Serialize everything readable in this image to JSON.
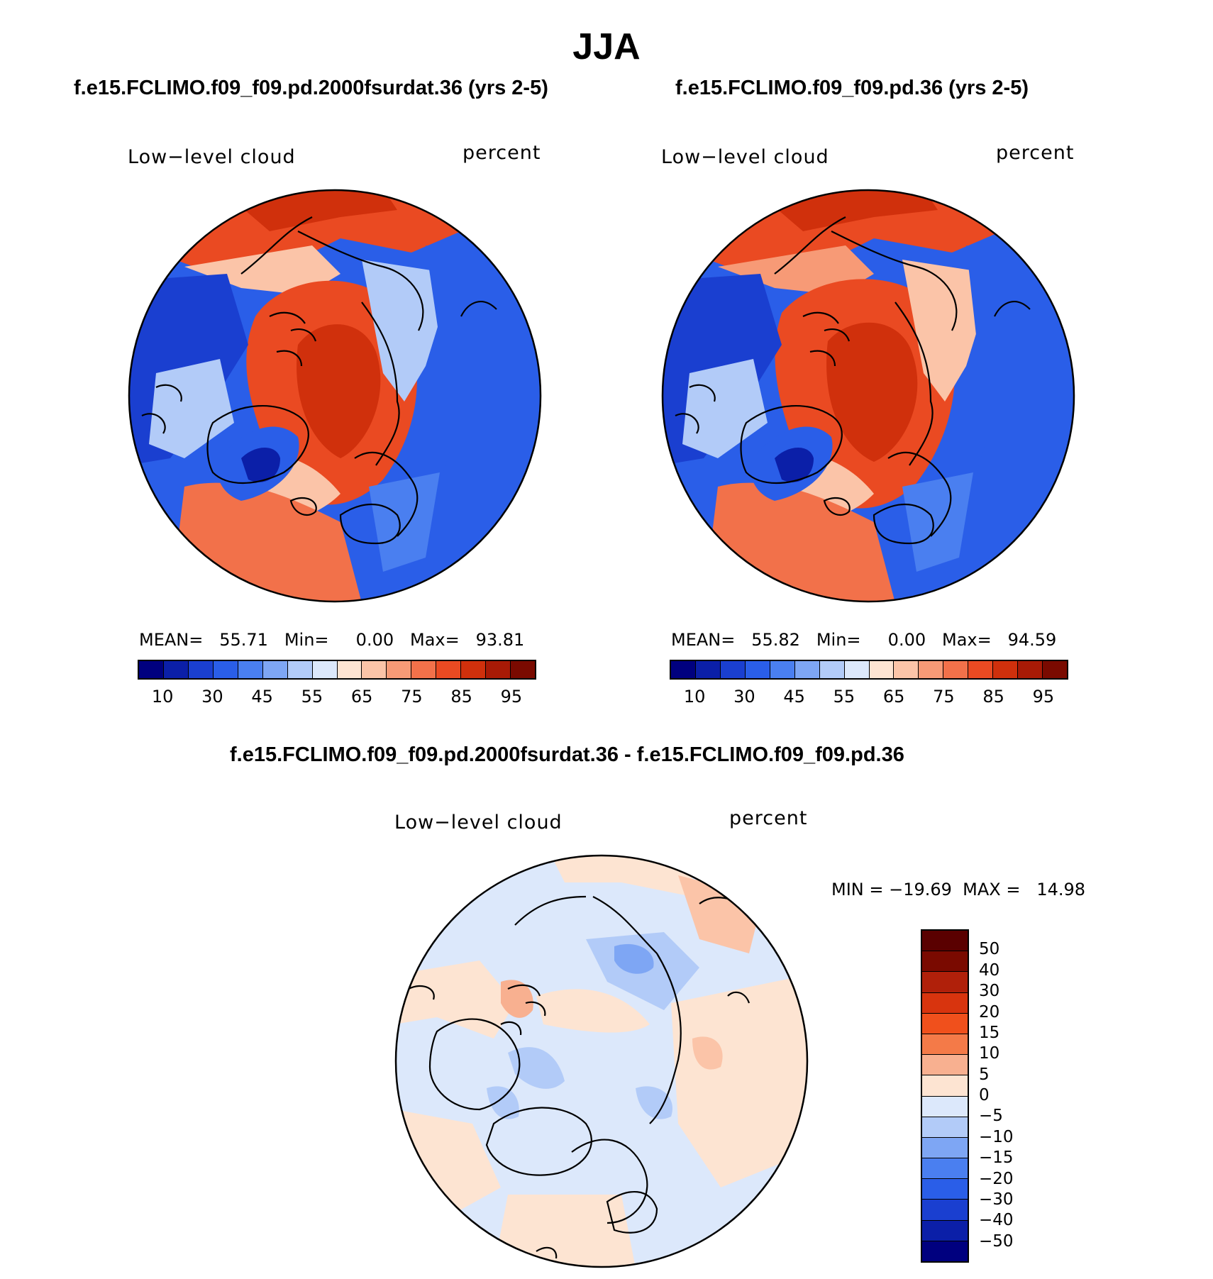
{
  "figure": {
    "season": "JJA",
    "case1_title": "f.e15.FCLIMO.f09_f09.pd.2000fsurdat.36 (yrs 2-5)",
    "case2_title": "f.e15.FCLIMO.f09_f09.pd.36 (yrs 2-5)",
    "diff_title": "f.e15.FCLIMO.f09_f09.pd.2000fsurdat.36 - f.e15.FCLIMO.f09_f09.pd.36"
  },
  "panel1": {
    "variable": "Low−level cloud",
    "units": "percent",
    "stats": "MEAN=   55.71   Min=     0.00   Max=   93.81"
  },
  "panel2": {
    "variable": "Low−level cloud",
    "units": "percent",
    "stats": "MEAN=   55.82   Min=     0.00   Max=   94.59"
  },
  "panel3": {
    "variable": "Low−level cloud",
    "units": "percent",
    "stats": "MIN = −19.69  MAX =   14.98"
  },
  "colorbar_abs": {
    "colors": [
      "#00007f",
      "#0b1fa8",
      "#1a3fd0",
      "#2a5ee8",
      "#4a7ff0",
      "#7ea6f4",
      "#b2cbf8",
      "#dce8fb",
      "#fde4d2",
      "#fbc4a8",
      "#f79a76",
      "#f2714a",
      "#ea4a22",
      "#d0300c",
      "#a81a06",
      "#7a0a00"
    ],
    "tick_labels": [
      "10",
      "30",
      "45",
      "55",
      "65",
      "75",
      "85",
      "95"
    ]
  },
  "colorbar_diff": {
    "colors": [
      "#7a0a00",
      "#b0200a",
      "#d8340e",
      "#f0501c",
      "#f47a48",
      "#f8b090",
      "#fde4d2",
      "#dce8fb",
      "#b2cbf8",
      "#7ea6f4",
      "#4a7ff0",
      "#2a5ee8",
      "#1a3fd0",
      "#0b1fa8",
      "#00007f"
    ],
    "tick_labels": [
      "50",
      "40",
      "30",
      "20",
      "15",
      "10",
      "5",
      "0",
      "−5",
      "−10",
      "−15",
      "−20",
      "−30",
      "−40",
      "−50"
    ]
  },
  "chart_data": {
    "type": "heatmap",
    "title": "JJA",
    "panels": [
      {
        "name": "f.e15.FCLIMO.f09_f09.pd.2000fsurdat.36 (yrs 2-5)",
        "field": "Low-level cloud",
        "units": "percent",
        "mean": 55.71,
        "min": 0.0,
        "max": 93.81
      },
      {
        "name": "f.e15.FCLIMO.f09_f09.pd.36 (yrs 2-5)",
        "field": "Low-level cloud",
        "units": "percent",
        "mean": 55.82,
        "min": 0.0,
        "max": 94.59
      },
      {
        "name": "difference",
        "field": "Low-level cloud",
        "units": "percent",
        "min": -19.69,
        "max": 14.98
      }
    ],
    "levels_abs": [
      10,
      30,
      45,
      55,
      65,
      75,
      85,
      95
    ],
    "levels_diff": [
      -50,
      -40,
      -30,
      -20,
      -15,
      -10,
      -5,
      0,
      5,
      10,
      15,
      20,
      30,
      40,
      50
    ]
  }
}
